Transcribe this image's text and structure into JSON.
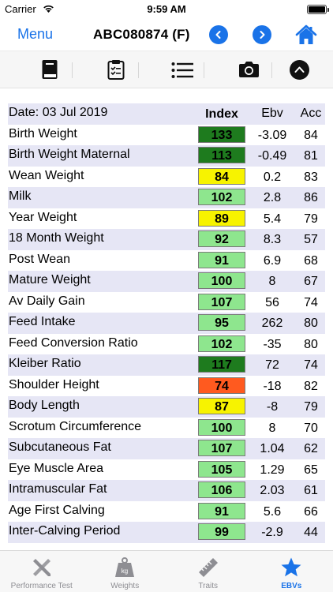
{
  "status_bar": {
    "carrier": "Carrier",
    "time": "9:59 AM"
  },
  "nav": {
    "menu_label": "Menu",
    "title": "ABC080874 (F)"
  },
  "table": {
    "date_label": "Date: 03 Jul 2019",
    "col_index": "Index",
    "col_ebv": "Ebv",
    "col_acc": "Acc",
    "rows": [
      {
        "trait": "Birth Weight",
        "index": "133",
        "ebv": "-3.09",
        "acc": "84",
        "color": "#1e7b1e"
      },
      {
        "trait": "Birth Weight Maternal",
        "index": "113",
        "ebv": "-0.49",
        "acc": "81",
        "color": "#1e7b1e"
      },
      {
        "trait": "Wean Weight",
        "index": "84",
        "ebv": "0.2",
        "acc": "83",
        "color": "#f7f300"
      },
      {
        "trait": "Milk",
        "index": "102",
        "ebv": "2.8",
        "acc": "86",
        "color": "#8ee68e"
      },
      {
        "trait": "Year Weight",
        "index": "89",
        "ebv": "5.4",
        "acc": "79",
        "color": "#f7f300"
      },
      {
        "trait": "18 Month Weight",
        "index": "92",
        "ebv": "8.3",
        "acc": "57",
        "color": "#8ee68e"
      },
      {
        "trait": "Post Wean",
        "index": "91",
        "ebv": "6.9",
        "acc": "68",
        "color": "#8ee68e"
      },
      {
        "trait": "Mature Weight",
        "index": "100",
        "ebv": "8",
        "acc": "67",
        "color": "#8ee68e"
      },
      {
        "trait": "Av Daily Gain",
        "index": "107",
        "ebv": "56",
        "acc": "74",
        "color": "#8ee68e"
      },
      {
        "trait": "Feed Intake",
        "index": "95",
        "ebv": "262",
        "acc": "80",
        "color": "#8ee68e"
      },
      {
        "trait": "Feed Conversion Ratio",
        "index": "102",
        "ebv": "-35",
        "acc": "80",
        "color": "#8ee68e"
      },
      {
        "trait": "Kleiber Ratio",
        "index": "117",
        "ebv": "72",
        "acc": "74",
        "color": "#1e7b1e"
      },
      {
        "trait": "Shoulder Height",
        "index": "74",
        "ebv": "-18",
        "acc": "82",
        "color": "#ff5a1f"
      },
      {
        "trait": "Body Length",
        "index": "87",
        "ebv": "-8",
        "acc": "79",
        "color": "#f7f300"
      },
      {
        "trait": "Scrotum Circumference",
        "index": "100",
        "ebv": "8",
        "acc": "70",
        "color": "#8ee68e"
      },
      {
        "trait": "Subcutaneous Fat",
        "index": "107",
        "ebv": "1.04",
        "acc": "62",
        "color": "#8ee68e"
      },
      {
        "trait": "Eye Muscle Area",
        "index": "105",
        "ebv": "1.29",
        "acc": "65",
        "color": "#8ee68e"
      },
      {
        "trait": "Intramuscular Fat",
        "index": "106",
        "ebv": "2.03",
        "acc": "61",
        "color": "#8ee68e"
      },
      {
        "trait": "Age First Calving",
        "index": "91",
        "ebv": "5.6",
        "acc": "66",
        "color": "#8ee68e"
      },
      {
        "trait": "Inter-Calving Period",
        "index": "99",
        "ebv": "-2.9",
        "acc": "44",
        "color": "#8ee68e"
      }
    ]
  },
  "tabs": [
    {
      "label": "Performance Test",
      "icon": "ruler-pencil-icon",
      "active": false
    },
    {
      "label": "Weights",
      "icon": "weight-kg-icon",
      "kg_text": "kg",
      "active": false
    },
    {
      "label": "Traits",
      "icon": "ruler-icon",
      "active": false
    },
    {
      "label": "EBVs",
      "icon": "star-icon",
      "active": true
    }
  ],
  "colors": {
    "accent": "#1a73e8",
    "row_shade": "#e6e6f5",
    "tab_inactive": "#8e8e93"
  }
}
